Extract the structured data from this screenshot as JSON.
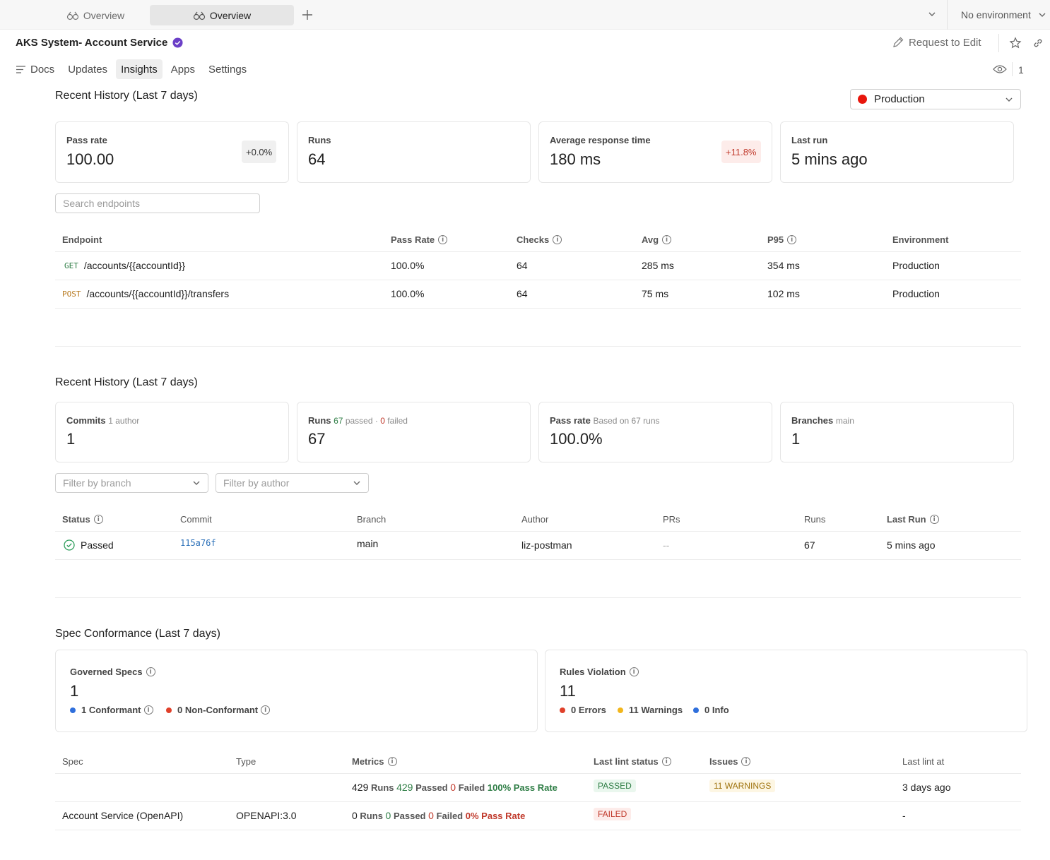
{
  "tabs": [
    {
      "label": "Overview",
      "active": false
    },
    {
      "label": "Overview",
      "active": true
    }
  ],
  "env_selector": {
    "label": "No environment"
  },
  "header": {
    "title": "AKS System- Account Service",
    "request_edit": "Request to Edit",
    "watch_count": "1"
  },
  "nav": [
    {
      "label": "Docs"
    },
    {
      "label": "Updates"
    },
    {
      "label": "Insights",
      "active": true
    },
    {
      "label": "Apps"
    },
    {
      "label": "Settings"
    }
  ],
  "history1": {
    "title": "Recent History (Last 7 days)",
    "environment": "Production",
    "environment_color": "#e8160c",
    "cards": [
      {
        "label": "Pass rate",
        "value": "100.00",
        "delta": "+0.0%"
      },
      {
        "label": "Runs",
        "value": "64"
      },
      {
        "label": "Average response time",
        "value": "180 ms",
        "delta": "+11.8%"
      },
      {
        "label": "Last run",
        "value": "5 mins ago"
      }
    ],
    "search_placeholder": "Search endpoints",
    "columns": [
      "Endpoint",
      "Pass Rate",
      "Checks",
      "Avg",
      "P95",
      "Environment"
    ],
    "rows": [
      {
        "method": "GET",
        "path": "/accounts/{{accountId}}",
        "pass_rate": "100.0%",
        "checks": "64",
        "avg": "285 ms",
        "p95": "354 ms",
        "env": "Production"
      },
      {
        "method": "POST",
        "path": "/accounts/{{accountId}}/transfers",
        "pass_rate": "100.0%",
        "checks": "64",
        "avg": "75 ms",
        "p95": "102 ms",
        "env": "Production"
      }
    ]
  },
  "history2": {
    "title": "Recent History (Last 7 days)",
    "commits": {
      "label": "Commits",
      "sub": "1 author",
      "value": "1"
    },
    "runs": {
      "label": "Runs",
      "passed_n": "67",
      "passed_word": "passed",
      "sep": "·",
      "failed_n": "0",
      "failed_word": "failed",
      "value": "67"
    },
    "passrate": {
      "label": "Pass rate",
      "sub": "Based on 67 runs",
      "value": "100.0%"
    },
    "branches": {
      "label": "Branches",
      "sub": "main",
      "value": "1"
    },
    "filter_branch": "Filter by branch",
    "filter_author": "Filter by author",
    "columns": [
      "Status",
      "Commit",
      "Branch",
      "Author",
      "PRs",
      "Runs",
      "Last Run"
    ],
    "row": {
      "status": "Passed",
      "commit": "115a76f",
      "branch": "main",
      "author": "liz-postman",
      "prs": "--",
      "runs": "67",
      "last_run": "5 mins ago"
    }
  },
  "spec": {
    "title": "Spec Conformance (Last 7 days)",
    "governed": {
      "label": "Governed Specs",
      "value": "1",
      "conformant": "1 Conformant",
      "nonconformant": "0 Non-Conformant"
    },
    "rules": {
      "label": "Rules Violation",
      "value": "11",
      "errors": "0 Errors",
      "warnings": "11 Warnings",
      "info": "0 Info"
    },
    "columns": [
      "Spec",
      "Type",
      "Metrics",
      "Last lint status",
      "Issues",
      "Last lint at"
    ],
    "rows": [
      {
        "spec": "",
        "type": "",
        "runs_n": "429",
        "runs_w": "Runs",
        "passed_n": "429",
        "passed_w": "Passed",
        "failed_n": "0",
        "failed_w": "Failed",
        "rate": "100% Pass Rate",
        "status": "PASSED",
        "issues": "11 WARNINGS",
        "last": "3 days ago"
      },
      {
        "spec": "Account Service (OpenAPI)",
        "type": "OPENAPI:3.0",
        "runs_n": "0",
        "runs_w": "Runs",
        "passed_n": "0",
        "passed_w": "Passed",
        "failed_n": "0",
        "failed_w": "Failed",
        "rate": "0% Pass Rate",
        "status": "FAILED",
        "issues": "",
        "last": "-"
      }
    ]
  }
}
